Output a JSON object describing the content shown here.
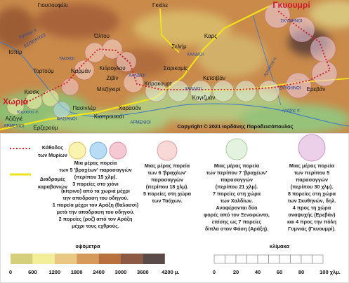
{
  "map": {
    "labels": [
      "Γιουσουφέλι",
      "Γκιόλε",
      "Γκυουμρί",
      "ΣΚΥΘΗΝΟΙ",
      "Όλτου",
      "Καρς",
      "Σελήμ",
      "Ισπίρ",
      "ΕΣΠΕΙΡΙΤΕΣ",
      "Τορτούμ",
      "ΤΑΟΧΟΙ",
      "Ναρμάν",
      "Κιόρογλου",
      "ΧΑΛΔΙΟΙ",
      "ΧΑΛΔΙΟΙ",
      "Σαρικαμίς",
      "Ζιβίν",
      "Μιτζίγκιρτ",
      "Καρακουρτ",
      "Κετσιβάν",
      "Κιοσκ",
      "Χωριά",
      "Κορασού π.",
      "Αζιζιγιέ",
      "ΑΡΜΕΝΙΟΙ",
      "Ερζερούμ",
      "ΦΑΣΙΑΝΟΙ",
      "Πασινλέρ",
      "Χορασάν",
      "Κιοπρουκιόι",
      "Καγιζμάν",
      "ΧΑΛΔΙΟΙ",
      "ΑΡΜΕΝΙΟΙ",
      "ΣΚΥΘΗΝΟΙ",
      "Ερεβάν",
      "Αράξης π.",
      "Αρπάτσαϊ π.",
      "Τορτούμ π."
    ],
    "copyright": "Copyright © 2021 Ιορδάνης Παραδεισόπουλος"
  },
  "legend": {
    "route": [
      "Κάθοδος",
      "των Μυρίων"
    ],
    "caravans": [
      "Διαδρομές",
      "καραβανιών"
    ],
    "blocks": [
      [
        "Μια μέρας πορεία",
        "των 5 'βραχέων' παρασαγγών",
        "(περίπου 15 χλμ).",
        "3 πορείες στο χιόνι",
        "(κίτρινο) από τα χωριά μέχρι",
        "την αποδραση του οδηγού.",
        "1 πορεία μέχρι τον Αράξη (θαλασσί)",
        "μετά την αποδραση του οδηγού.",
        "2 πορείες (ροζ) από τον Αράξη",
        "μέχρι τους εχθρούς."
      ],
      [
        "Μιας μέρας πορεία",
        "των 6 'βραχέων'",
        "παρασαγγών",
        "(περίπου 18 χλμ).",
        "5 πορείες στη χώρα",
        "των Ταόχων."
      ],
      [
        "Μιας μέρας πορεία",
        "των περίπου 7 'βραχέων'",
        "παρασαγγών",
        "(περίπου 21 χλμ).",
        "7 πορείες στη χώρα",
        "των Χαλδίων.",
        "Αναφέρονται δύο",
        "φορές από τον Ξενοφώντα,",
        "επίσης ως 7 πορείες",
        "δίπλα στον Φάση (Αράξη)."
      ],
      [
        "Μιας μέρας πορεία",
        "των περίπου 5",
        "παρασαγγών",
        "(περίπου 30 χλμ).",
        "8 πορείες στη χώρα",
        "των Σκυθηνών, δηλ.",
        "4 προς τη χώρα",
        "αναψυχής (Ερεβάν)",
        "και 4 προς την πόλη",
        "Γυμνιάς (Γκυουμρί)."
      ]
    ],
    "elevation_title": "υψόμετρα",
    "elevation_labels": [
      "0",
      "600",
      "1200",
      "1800",
      "2400",
      "3000",
      "3600",
      "4200 μ."
    ],
    "scale_title": "κλίμακα",
    "scale_labels": [
      "0",
      "20",
      "40",
      "60",
      "80",
      "100 χλμ."
    ]
  }
}
